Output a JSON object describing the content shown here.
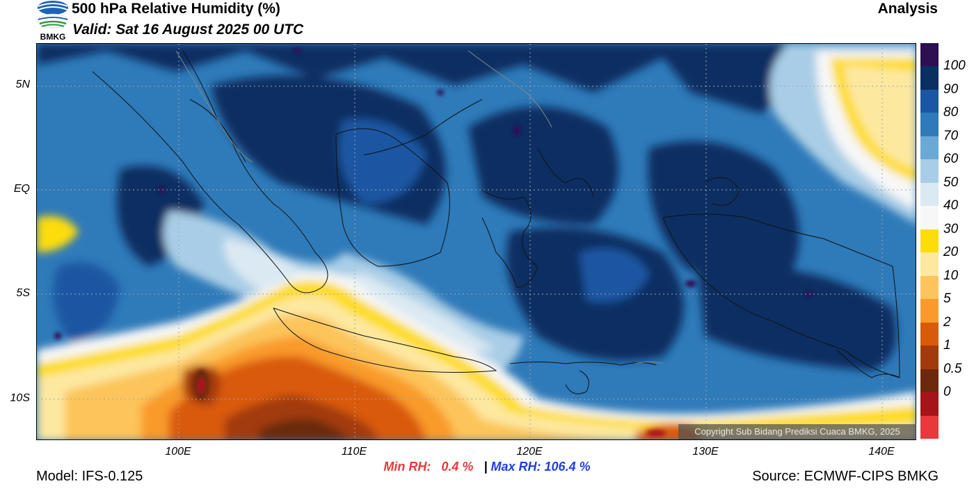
{
  "header": {
    "title": "500 hPa Relative Humidity (%)",
    "valid": "Valid: Sat 16 August 2025 00 UTC",
    "product": "Analysis",
    "logo_text": "BMKG"
  },
  "axes": {
    "lat_labels": [
      "5N",
      "EQ",
      "5S",
      "10S"
    ],
    "lon_labels": [
      "100E",
      "110E",
      "120E",
      "130E",
      "140E"
    ]
  },
  "colorbar": {
    "labels": [
      "100",
      "90",
      "80",
      "70",
      "60",
      "50",
      "40",
      "30",
      "20",
      "10",
      "5",
      "2",
      "1",
      "0.5",
      "0"
    ],
    "colors": [
      "#2d0f52",
      "#0a2f62",
      "#1a56a3",
      "#2f7ab9",
      "#6aa8d5",
      "#a9cde6",
      "#dbe9f3",
      "#f7f7f7",
      "#fddc0b",
      "#fde8a0",
      "#fcc45a",
      "#f99a2b",
      "#d95a09",
      "#a23b0c",
      "#6b2a0e",
      "#a7131a",
      "#e8393c"
    ]
  },
  "stats": {
    "min_label": "Min RH:",
    "min_value": "0.4 %",
    "separator": "|",
    "max_label": "Max RH:",
    "max_value": "106.4 %"
  },
  "footer": {
    "model": "Model: IFS-0.125",
    "source": "Source: ECMWF-CIPS BMKG",
    "copyright": "Copyright Sub Bidang Prediksi Cuaca BMKG, 2025"
  }
}
